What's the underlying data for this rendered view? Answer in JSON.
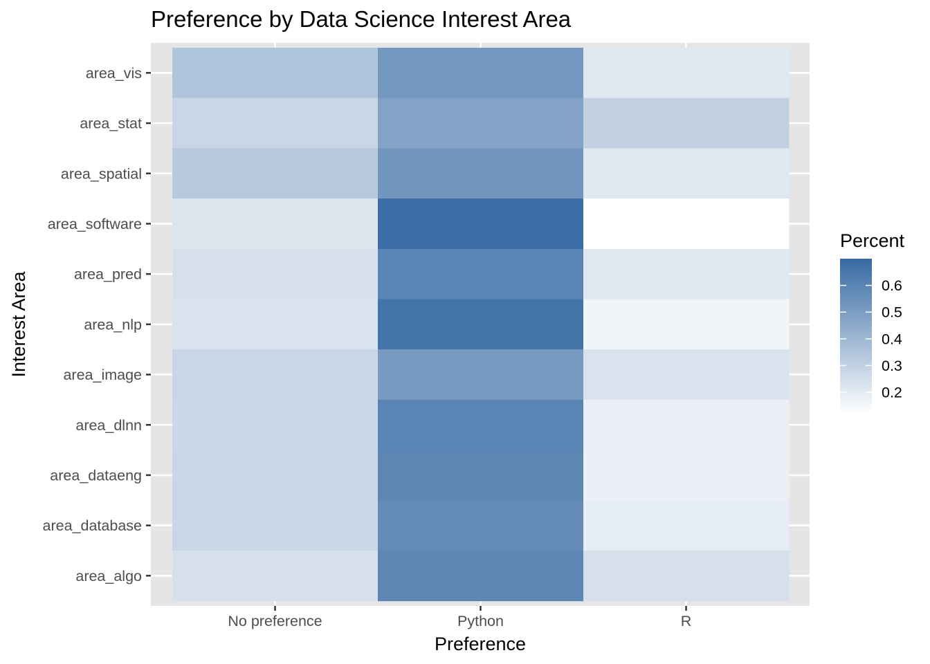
{
  "chart_data": {
    "type": "heatmap",
    "title": "Preference by Data Science Interest Area",
    "xlabel": "Preference",
    "ylabel": "Interest Area",
    "x_categories": [
      "No preference",
      "Python",
      "R"
    ],
    "y_categories": [
      "area_vis",
      "area_stat",
      "area_spatial",
      "area_software",
      "area_pred",
      "area_nlp",
      "area_image",
      "area_dlnn",
      "area_dataeng",
      "area_database",
      "area_algo"
    ],
    "values": [
      [
        0.35,
        0.52,
        0.21
      ],
      [
        0.28,
        0.48,
        0.3
      ],
      [
        0.33,
        0.53,
        0.21
      ],
      [
        0.22,
        0.69,
        0.12
      ],
      [
        0.24,
        0.6,
        0.21
      ],
      [
        0.23,
        0.66,
        0.16
      ],
      [
        0.28,
        0.51,
        0.23
      ],
      [
        0.27,
        0.6,
        0.18
      ],
      [
        0.28,
        0.59,
        0.18
      ],
      [
        0.28,
        0.57,
        0.19
      ],
      [
        0.24,
        0.59,
        0.24
      ]
    ],
    "legend": {
      "title": "Percent",
      "ticks": [
        0.2,
        0.3,
        0.4,
        0.5,
        0.6
      ],
      "min": 0.12,
      "max": 0.7,
      "low_color": "#ffffff",
      "high_color": "#376aa3",
      "position": "right"
    },
    "panel_background": "#e5e5e5",
    "grid": true
  }
}
